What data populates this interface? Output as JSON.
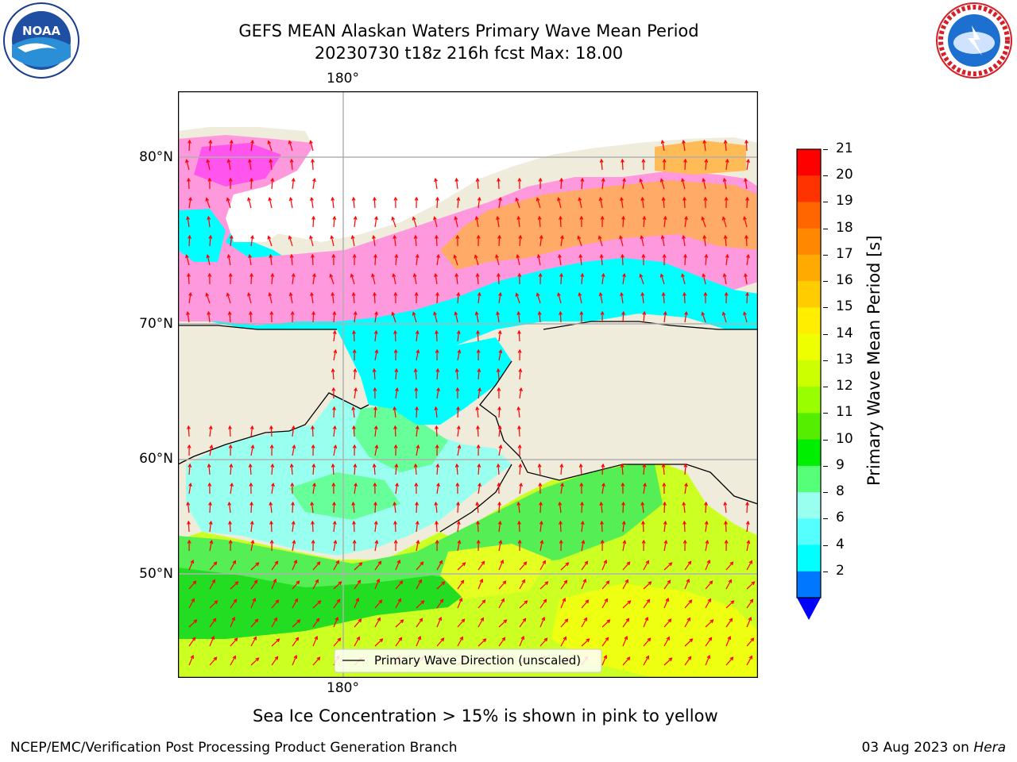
{
  "header": {
    "title_line1": "GEFS MEAN Alaskan Waters Primary Wave Mean Period",
    "title_line2": "20230730 t18z 216h fcst   Max: 18.00"
  },
  "logos": {
    "left": "NOAA",
    "right": "NATIONAL WEATHER SERVICE"
  },
  "map": {
    "lon_label_top": "180°",
    "lon_label_bottom": "180°",
    "lat_labels": [
      "80°N",
      "70°N",
      "60°N",
      "50°N"
    ],
    "legend_text": "Primary Wave Direction (unscaled)"
  },
  "colorbar": {
    "label": "Primary Wave Mean Period [s]",
    "ticks": [
      "21",
      "20",
      "19",
      "18",
      "17",
      "16",
      "15",
      "14",
      "13",
      "12",
      "11",
      "10",
      "9",
      "8",
      "6",
      "4",
      "2"
    ],
    "colors": [
      "#ff0000",
      "#ff3300",
      "#ff6600",
      "#ff8800",
      "#ffaa00",
      "#ffcc00",
      "#ffee00",
      "#eeff00",
      "#ccff00",
      "#99ff00",
      "#55ee00",
      "#00ee00",
      "#55ff77",
      "#99ffee",
      "#55ffff",
      "#00ffff",
      "#0077ff"
    ],
    "extend_color": "#0000ff"
  },
  "notes": {
    "ice": "Sea Ice Concentration > 15% is shown in pink to yellow"
  },
  "footer": {
    "left": "NCEP/EMC/Verification Post Processing Product Generation Branch",
    "right_prefix": "03 Aug 2023 on ",
    "right_host": "Hera"
  }
}
